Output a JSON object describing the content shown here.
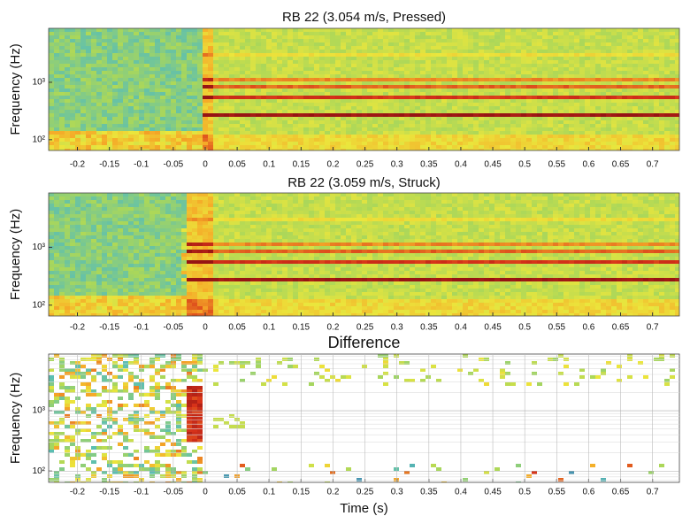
{
  "chart_data": [
    {
      "type": "spectrogram",
      "title": "RB 22 (3.054 m/s, Pressed)",
      "ylabel": "Frequency (Hz)",
      "xlim": [
        -0.245,
        0.742
      ],
      "xticks": [
        -0.2,
        -0.15,
        -0.1,
        -0.05,
        0,
        0.05,
        0.1,
        0.15,
        0.2,
        0.25,
        0.3,
        0.35,
        0.4,
        0.45,
        0.5,
        0.55,
        0.6,
        0.65,
        0.7
      ],
      "ylim": [
        65,
        8700
      ],
      "yticks": [
        {
          "value": 100,
          "label": "10²"
        },
        {
          "value": 1000,
          "label": "10³"
        }
      ],
      "log_y": true,
      "grid": false
    },
    {
      "type": "spectrogram",
      "title": "RB 22 (3.059 m/s, Struck)",
      "ylabel": "Frequency (Hz)",
      "xlim": [
        -0.245,
        0.742
      ],
      "xticks": [
        -0.2,
        -0.15,
        -0.1,
        -0.05,
        0,
        0.05,
        0.1,
        0.15,
        0.2,
        0.25,
        0.3,
        0.35,
        0.4,
        0.45,
        0.5,
        0.55,
        0.6,
        0.65,
        0.7
      ],
      "ylim": [
        65,
        8700
      ],
      "yticks": [
        {
          "value": 100,
          "label": "10²"
        },
        {
          "value": 1000,
          "label": "10³"
        }
      ],
      "log_y": true,
      "grid": false
    },
    {
      "type": "difference",
      "title": "Difference",
      "ylabel": "Frequency (Hz)",
      "xlabel": "Time (s)",
      "xlim": [
        -0.245,
        0.742
      ],
      "xticks": [
        -0.2,
        -0.15,
        -0.1,
        -0.05,
        0,
        0.05,
        0.1,
        0.15,
        0.2,
        0.25,
        0.3,
        0.35,
        0.4,
        0.45,
        0.5,
        0.55,
        0.6,
        0.65,
        0.7
      ],
      "ylim": [
        65,
        8700
      ],
      "yticks": [
        {
          "value": 100,
          "label": "10²"
        },
        {
          "value": 1000,
          "label": "10³"
        }
      ],
      "log_y": true,
      "grid": true
    }
  ]
}
